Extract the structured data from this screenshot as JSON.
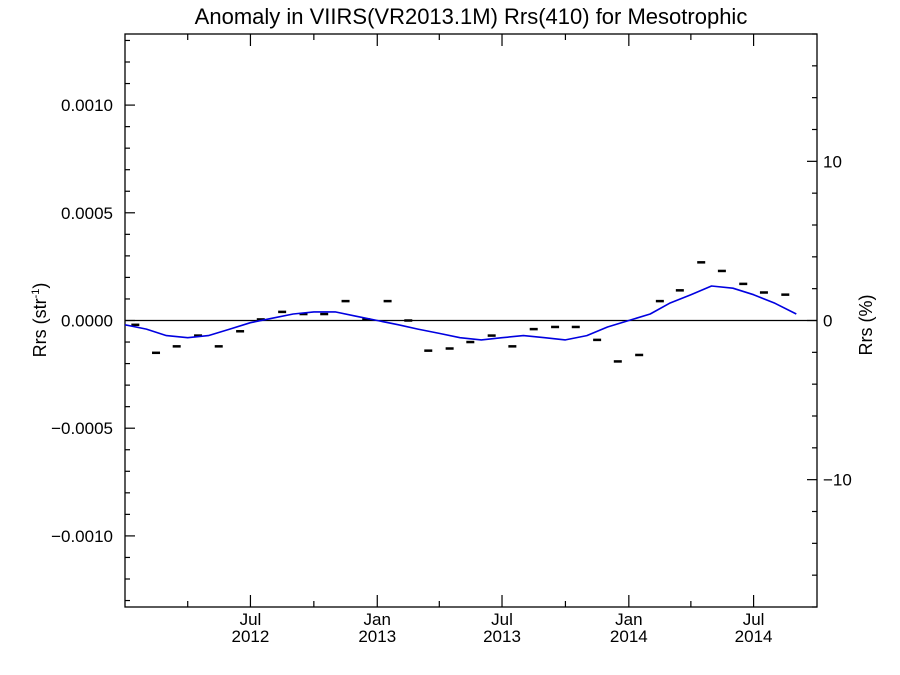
{
  "chart_data": {
    "type": "line",
    "title": "Anomaly in VIIRS(VR2013.1M) Rrs(410) for Mesotrophic",
    "ylabel_left": {
      "main": "Rrs (str",
      "sup": "-1",
      "end": ")"
    },
    "ylabel_right": "Rrs (%)",
    "xlim": [
      "2012-01-01",
      "2014-10-01"
    ],
    "ylim": [
      -0.00133,
      0.00133
    ],
    "ylim_right": [
      -18,
      18
    ],
    "y_ticks_left": [
      {
        "v": 0.001,
        "label": "0.0010"
      },
      {
        "v": 0.0005,
        "label": "0.0005"
      },
      {
        "v": 0.0,
        "label": "0.0000"
      },
      {
        "v": -0.0005,
        "label": "−0.0005"
      },
      {
        "v": -0.001,
        "label": "−0.0010"
      }
    ],
    "y_ticks_right": [
      {
        "v": 10,
        "label": "10"
      },
      {
        "v": 0,
        "label": "0"
      },
      {
        "v": -10,
        "label": "−10"
      }
    ],
    "x_major_ticks": [
      {
        "date": "2012-07-01",
        "label1": "Jul",
        "label2": "2012"
      },
      {
        "date": "2013-01-01",
        "label1": "Jan",
        "label2": "2013"
      },
      {
        "date": "2013-07-01",
        "label1": "Jul",
        "label2": "2013"
      },
      {
        "date": "2014-01-01",
        "label1": "Jan",
        "label2": "2014"
      },
      {
        "date": "2014-07-01",
        "label1": "Jul",
        "label2": "2014"
      }
    ],
    "x_minor_ticks": [
      "2012-04-01",
      "2012-10-01",
      "2013-04-01",
      "2013-10-01",
      "2014-04-01"
    ],
    "series": [
      {
        "kind": "markers",
        "color": "#000000",
        "points": [
          {
            "date": "2012-01-16",
            "y": -2e-05
          },
          {
            "date": "2012-02-15",
            "y": -0.00015
          },
          {
            "date": "2012-03-16",
            "y": -0.00012
          },
          {
            "date": "2012-04-16",
            "y": -7e-05
          },
          {
            "date": "2012-05-16",
            "y": -0.00012
          },
          {
            "date": "2012-06-16",
            "y": -5e-05
          },
          {
            "date": "2012-07-16",
            "y": 5e-06
          },
          {
            "date": "2012-08-16",
            "y": 4e-05
          },
          {
            "date": "2012-09-16",
            "y": 3e-05
          },
          {
            "date": "2012-10-16",
            "y": 3e-05
          },
          {
            "date": "2012-11-16",
            "y": 9e-05
          },
          {
            "date": "2012-12-16",
            "y": 5e-06
          },
          {
            "date": "2013-01-16",
            "y": 9e-05
          },
          {
            "date": "2013-02-15",
            "y": 0.0
          },
          {
            "date": "2013-03-16",
            "y": -0.00014
          },
          {
            "date": "2013-04-16",
            "y": -0.00013
          },
          {
            "date": "2013-05-16",
            "y": -0.0001
          },
          {
            "date": "2013-06-16",
            "y": -7e-05
          },
          {
            "date": "2013-07-16",
            "y": -0.00012
          },
          {
            "date": "2013-08-16",
            "y": -4e-05
          },
          {
            "date": "2013-09-16",
            "y": -3e-05
          },
          {
            "date": "2013-10-16",
            "y": -3e-05
          },
          {
            "date": "2013-11-16",
            "y": -9e-05
          },
          {
            "date": "2013-12-16",
            "y": -0.00019
          },
          {
            "date": "2014-01-16",
            "y": -0.00016
          },
          {
            "date": "2014-02-15",
            "y": 9e-05
          },
          {
            "date": "2014-03-16",
            "y": 0.00014
          },
          {
            "date": "2014-04-16",
            "y": 0.00027
          },
          {
            "date": "2014-05-16",
            "y": 0.00023
          },
          {
            "date": "2014-06-16",
            "y": 0.00017
          },
          {
            "date": "2014-07-16",
            "y": 0.00013
          },
          {
            "date": "2014-08-16",
            "y": 0.00012
          }
        ]
      },
      {
        "kind": "line",
        "color": "#0000e0",
        "points": [
          {
            "date": "2012-01-01",
            "y": -2e-05
          },
          {
            "date": "2012-02-01",
            "y": -4e-05
          },
          {
            "date": "2012-03-01",
            "y": -7e-05
          },
          {
            "date": "2012-04-01",
            "y": -8e-05
          },
          {
            "date": "2012-05-01",
            "y": -7e-05
          },
          {
            "date": "2012-06-01",
            "y": -4e-05
          },
          {
            "date": "2012-07-01",
            "y": -1e-05
          },
          {
            "date": "2012-08-01",
            "y": 1e-05
          },
          {
            "date": "2012-09-01",
            "y": 3e-05
          },
          {
            "date": "2012-10-01",
            "y": 4e-05
          },
          {
            "date": "2012-11-01",
            "y": 4e-05
          },
          {
            "date": "2012-12-01",
            "y": 2e-05
          },
          {
            "date": "2013-01-01",
            "y": 0.0
          },
          {
            "date": "2013-02-01",
            "y": -2e-05
          },
          {
            "date": "2013-03-01",
            "y": -4e-05
          },
          {
            "date": "2013-04-01",
            "y": -6e-05
          },
          {
            "date": "2013-05-01",
            "y": -8e-05
          },
          {
            "date": "2013-06-01",
            "y": -9e-05
          },
          {
            "date": "2013-07-01",
            "y": -8e-05
          },
          {
            "date": "2013-08-01",
            "y": -7e-05
          },
          {
            "date": "2013-09-01",
            "y": -8e-05
          },
          {
            "date": "2013-10-01",
            "y": -9e-05
          },
          {
            "date": "2013-11-01",
            "y": -7e-05
          },
          {
            "date": "2013-12-01",
            "y": -3e-05
          },
          {
            "date": "2014-01-01",
            "y": 0.0
          },
          {
            "date": "2014-02-01",
            "y": 3e-05
          },
          {
            "date": "2014-03-01",
            "y": 8e-05
          },
          {
            "date": "2014-04-01",
            "y": 0.00012
          },
          {
            "date": "2014-05-01",
            "y": 0.00016
          },
          {
            "date": "2014-06-01",
            "y": 0.00015
          },
          {
            "date": "2014-07-01",
            "y": 0.00012
          },
          {
            "date": "2014-08-01",
            "y": 8e-05
          },
          {
            "date": "2014-09-01",
            "y": 3e-05
          }
        ]
      }
    ],
    "zero_line": true,
    "grid": false
  }
}
